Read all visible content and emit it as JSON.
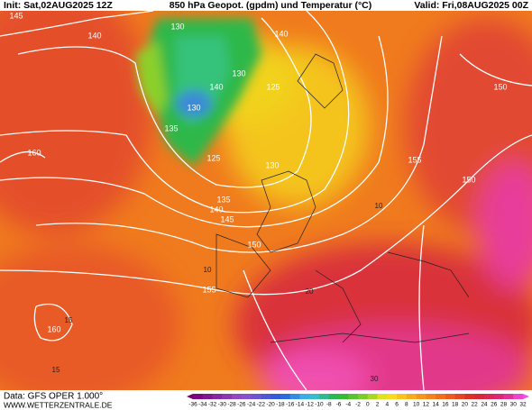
{
  "header": {
    "init": "Init: Sat,02AUG2025 12Z",
    "title": "850 hPa Geopot. (gpdm) und Temperatur (°C)",
    "valid": "Valid: Fri,08AUG2025 00Z"
  },
  "footer": {
    "data": "Data: GFS OPER 1.000°",
    "site": "WWW.WETTERZENTRALE.DE"
  },
  "colorbar": {
    "ticks": [
      -36,
      -34,
      -32,
      -30,
      -28,
      -26,
      -24,
      -22,
      -20,
      -18,
      -16,
      -14,
      -12,
      -10,
      -8,
      -6,
      -4,
      -2,
      0,
      2,
      4,
      6,
      8,
      10,
      12,
      14,
      16,
      18,
      20,
      22,
      24,
      26,
      28,
      30,
      32
    ]
  },
  "contour_labels": [
    "145",
    "140",
    "130",
    "140",
    "130",
    "140",
    "130",
    "125",
    "135",
    "125",
    "130",
    "135",
    "140",
    "145",
    "150",
    "155",
    "155",
    "150",
    "150",
    "160",
    "160",
    "10",
    "10",
    "15",
    "20",
    "30",
    "15"
  ]
}
